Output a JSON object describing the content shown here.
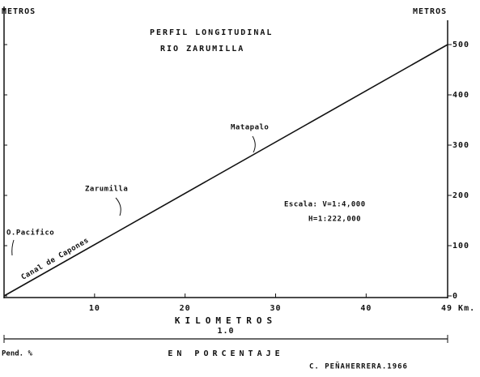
{
  "chart_data": {
    "type": "line",
    "title": "PERFIL LONGITUDINAL",
    "subtitle": "RIO ZARUMILLA",
    "y_label_left": "METROS",
    "y_label_right": "METROS",
    "x_label": "KILOMETROS",
    "x": [
      0,
      49
    ],
    "series": [
      {
        "name": "Rio Zarumilla",
        "color": "#111111",
        "values": [
          0,
          500
        ]
      }
    ],
    "xlim": [
      0,
      49
    ],
    "ylim": [
      0,
      500
    ],
    "xticks": [
      10,
      20,
      30,
      40,
      {
        "value": 49,
        "label": "49 Km."
      }
    ],
    "yticks": [
      0,
      100,
      200,
      300,
      400,
      500
    ],
    "annotations": [
      "Matapalo",
      "Zarumilla",
      "O.Pacifico",
      "Canal de Capones",
      "Escala: V=1:4,000",
      "H=1:222,000"
    ],
    "slope_value": "1.0",
    "slope_label": "Pend. %",
    "slope_caption": "EN PORCENTAJE",
    "credit": "C. PEÑAHERRERA.1966"
  }
}
